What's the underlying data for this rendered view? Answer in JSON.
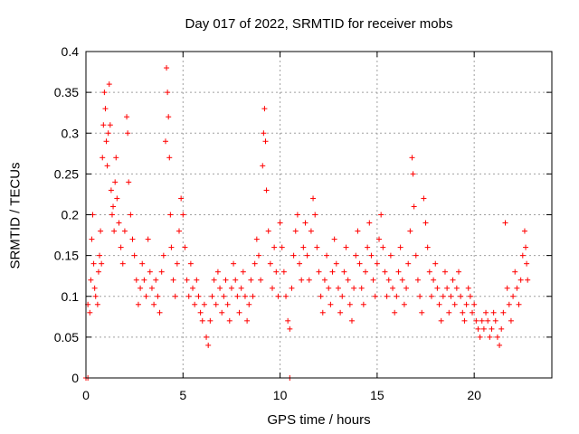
{
  "chart_data": {
    "type": "scatter",
    "title": "Day 017 of 2022, SRMTID for receiver mobs",
    "xlabel": "GPS time / hours",
    "ylabel": "SRMTID / TECUs",
    "xlim": [
      0,
      24
    ],
    "ylim": [
      0,
      0.4
    ],
    "xticks": [
      0,
      5,
      10,
      15,
      20
    ],
    "yticks": [
      0,
      0.05,
      0.1,
      0.15,
      0.2,
      0.25,
      0.3,
      0.35,
      0.4
    ],
    "grid": true,
    "marker": "+",
    "color": "#ff0000",
    "series": [
      {
        "name": "SRMTID",
        "points": [
          [
            0.0,
            0.0
          ],
          [
            0.1,
            0.0
          ],
          [
            10.5,
            0.0
          ],
          [
            0.1,
            0.09
          ],
          [
            0.2,
            0.08
          ],
          [
            0.25,
            0.12
          ],
          [
            0.3,
            0.17
          ],
          [
            0.35,
            0.2
          ],
          [
            0.4,
            0.14
          ],
          [
            0.45,
            0.11
          ],
          [
            0.5,
            0.1
          ],
          [
            0.6,
            0.09
          ],
          [
            0.65,
            0.13
          ],
          [
            0.7,
            0.15
          ],
          [
            0.75,
            0.18
          ],
          [
            0.8,
            0.14
          ],
          [
            0.85,
            0.27
          ],
          [
            0.9,
            0.31
          ],
          [
            0.95,
            0.35
          ],
          [
            1.0,
            0.33
          ],
          [
            1.05,
            0.29
          ],
          [
            1.1,
            0.26
          ],
          [
            1.15,
            0.3
          ],
          [
            1.2,
            0.36
          ],
          [
            1.25,
            0.31
          ],
          [
            1.3,
            0.23
          ],
          [
            1.35,
            0.2
          ],
          [
            1.4,
            0.21
          ],
          [
            1.45,
            0.18
          ],
          [
            1.5,
            0.24
          ],
          [
            1.55,
            0.27
          ],
          [
            1.6,
            0.22
          ],
          [
            1.7,
            0.19
          ],
          [
            1.8,
            0.16
          ],
          [
            1.9,
            0.14
          ],
          [
            2.0,
            0.18
          ],
          [
            2.1,
            0.32
          ],
          [
            2.15,
            0.3
          ],
          [
            2.2,
            0.24
          ],
          [
            2.3,
            0.2
          ],
          [
            2.4,
            0.17
          ],
          [
            2.5,
            0.15
          ],
          [
            2.6,
            0.12
          ],
          [
            2.7,
            0.09
          ],
          [
            2.8,
            0.11
          ],
          [
            2.9,
            0.14
          ],
          [
            3.0,
            0.12
          ],
          [
            3.1,
            0.1
          ],
          [
            3.2,
            0.17
          ],
          [
            3.3,
            0.13
          ],
          [
            3.4,
            0.11
          ],
          [
            3.5,
            0.09
          ],
          [
            3.6,
            0.12
          ],
          [
            3.7,
            0.1
          ],
          [
            3.8,
            0.08
          ],
          [
            3.9,
            0.13
          ],
          [
            4.0,
            0.15
          ],
          [
            4.1,
            0.29
          ],
          [
            4.15,
            0.38
          ],
          [
            4.2,
            0.35
          ],
          [
            4.25,
            0.32
          ],
          [
            4.3,
            0.27
          ],
          [
            4.35,
            0.2
          ],
          [
            4.4,
            0.16
          ],
          [
            4.5,
            0.12
          ],
          [
            4.6,
            0.1
          ],
          [
            4.7,
            0.14
          ],
          [
            4.8,
            0.18
          ],
          [
            4.9,
            0.22
          ],
          [
            5.0,
            0.2
          ],
          [
            5.1,
            0.16
          ],
          [
            5.2,
            0.12
          ],
          [
            5.3,
            0.1
          ],
          [
            5.4,
            0.14
          ],
          [
            5.5,
            0.11
          ],
          [
            5.6,
            0.09
          ],
          [
            5.7,
            0.12
          ],
          [
            5.8,
            0.1
          ],
          [
            5.9,
            0.08
          ],
          [
            6.0,
            0.07
          ],
          [
            6.1,
            0.09
          ],
          [
            6.2,
            0.05
          ],
          [
            6.3,
            0.04
          ],
          [
            6.4,
            0.07
          ],
          [
            6.5,
            0.1
          ],
          [
            6.6,
            0.12
          ],
          [
            6.7,
            0.09
          ],
          [
            6.8,
            0.13
          ],
          [
            6.9,
            0.11
          ],
          [
            7.0,
            0.08
          ],
          [
            7.1,
            0.1
          ],
          [
            7.2,
            0.12
          ],
          [
            7.3,
            0.09
          ],
          [
            7.4,
            0.07
          ],
          [
            7.5,
            0.11
          ],
          [
            7.6,
            0.14
          ],
          [
            7.7,
            0.12
          ],
          [
            7.8,
            0.1
          ],
          [
            7.9,
            0.08
          ],
          [
            8.0,
            0.11
          ],
          [
            8.1,
            0.13
          ],
          [
            8.2,
            0.1
          ],
          [
            8.3,
            0.07
          ],
          [
            8.4,
            0.09
          ],
          [
            8.5,
            0.12
          ],
          [
            8.6,
            0.1
          ],
          [
            8.7,
            0.14
          ],
          [
            8.8,
            0.17
          ],
          [
            8.9,
            0.15
          ],
          [
            9.0,
            0.12
          ],
          [
            9.1,
            0.26
          ],
          [
            9.15,
            0.3
          ],
          [
            9.2,
            0.33
          ],
          [
            9.25,
            0.29
          ],
          [
            9.3,
            0.23
          ],
          [
            9.4,
            0.18
          ],
          [
            9.5,
            0.14
          ],
          [
            9.6,
            0.11
          ],
          [
            9.7,
            0.16
          ],
          [
            9.8,
            0.13
          ],
          [
            9.9,
            0.1
          ],
          [
            10.0,
            0.19
          ],
          [
            10.1,
            0.16
          ],
          [
            10.2,
            0.13
          ],
          [
            10.3,
            0.1
          ],
          [
            10.4,
            0.07
          ],
          [
            10.5,
            0.06
          ],
          [
            10.6,
            0.11
          ],
          [
            10.7,
            0.15
          ],
          [
            10.8,
            0.18
          ],
          [
            10.9,
            0.2
          ],
          [
            11.0,
            0.14
          ],
          [
            11.1,
            0.12
          ],
          [
            11.2,
            0.16
          ],
          [
            11.3,
            0.19
          ],
          [
            11.4,
            0.15
          ],
          [
            11.5,
            0.12
          ],
          [
            11.6,
            0.18
          ],
          [
            11.7,
            0.22
          ],
          [
            11.8,
            0.2
          ],
          [
            11.9,
            0.16
          ],
          [
            12.0,
            0.13
          ],
          [
            12.1,
            0.1
          ],
          [
            12.2,
            0.08
          ],
          [
            12.3,
            0.12
          ],
          [
            12.4,
            0.15
          ],
          [
            12.5,
            0.11
          ],
          [
            12.6,
            0.09
          ],
          [
            12.7,
            0.13
          ],
          [
            12.8,
            0.17
          ],
          [
            12.9,
            0.14
          ],
          [
            13.0,
            0.11
          ],
          [
            13.1,
            0.08
          ],
          [
            13.2,
            0.1
          ],
          [
            13.3,
            0.13
          ],
          [
            13.4,
            0.16
          ],
          [
            13.5,
            0.12
          ],
          [
            13.6,
            0.09
          ],
          [
            13.7,
            0.07
          ],
          [
            13.8,
            0.11
          ],
          [
            13.9,
            0.15
          ],
          [
            14.0,
            0.18
          ],
          [
            14.1,
            0.14
          ],
          [
            14.2,
            0.11
          ],
          [
            14.3,
            0.09
          ],
          [
            14.4,
            0.13
          ],
          [
            14.5,
            0.16
          ],
          [
            14.6,
            0.19
          ],
          [
            14.7,
            0.15
          ],
          [
            14.8,
            0.12
          ],
          [
            14.9,
            0.1
          ],
          [
            15.0,
            0.14
          ],
          [
            15.1,
            0.17
          ],
          [
            15.2,
            0.2
          ],
          [
            15.3,
            0.16
          ],
          [
            15.4,
            0.13
          ],
          [
            15.5,
            0.1
          ],
          [
            15.6,
            0.12
          ],
          [
            15.7,
            0.15
          ],
          [
            15.8,
            0.11
          ],
          [
            15.9,
            0.08
          ],
          [
            16.0,
            0.1
          ],
          [
            16.1,
            0.13
          ],
          [
            16.2,
            0.16
          ],
          [
            16.3,
            0.12
          ],
          [
            16.4,
            0.09
          ],
          [
            16.5,
            0.11
          ],
          [
            16.6,
            0.14
          ],
          [
            16.7,
            0.18
          ],
          [
            16.8,
            0.27
          ],
          [
            16.85,
            0.25
          ],
          [
            16.9,
            0.21
          ],
          [
            17.0,
            0.15
          ],
          [
            17.1,
            0.12
          ],
          [
            17.2,
            0.1
          ],
          [
            17.3,
            0.08
          ],
          [
            17.4,
            0.22
          ],
          [
            17.5,
            0.19
          ],
          [
            17.6,
            0.16
          ],
          [
            17.7,
            0.13
          ],
          [
            17.8,
            0.1
          ],
          [
            17.9,
            0.12
          ],
          [
            18.0,
            0.14
          ],
          [
            18.1,
            0.11
          ],
          [
            18.2,
            0.09
          ],
          [
            18.3,
            0.07
          ],
          [
            18.4,
            0.1
          ],
          [
            18.5,
            0.13
          ],
          [
            18.6,
            0.11
          ],
          [
            18.7,
            0.08
          ],
          [
            18.8,
            0.1
          ],
          [
            18.9,
            0.12
          ],
          [
            19.0,
            0.09
          ],
          [
            19.1,
            0.11
          ],
          [
            19.2,
            0.13
          ],
          [
            19.3,
            0.1
          ],
          [
            19.4,
            0.08
          ],
          [
            19.5,
            0.07
          ],
          [
            19.6,
            0.09
          ],
          [
            19.7,
            0.11
          ],
          [
            19.8,
            0.1
          ],
          [
            19.9,
            0.08
          ],
          [
            20.0,
            0.09
          ],
          [
            20.1,
            0.07
          ],
          [
            20.2,
            0.06
          ],
          [
            20.3,
            0.05
          ],
          [
            20.4,
            0.07
          ],
          [
            20.5,
            0.06
          ],
          [
            20.6,
            0.08
          ],
          [
            20.7,
            0.07
          ],
          [
            20.8,
            0.05
          ],
          [
            20.9,
            0.06
          ],
          [
            21.0,
            0.08
          ],
          [
            21.1,
            0.07
          ],
          [
            21.2,
            0.05
          ],
          [
            21.3,
            0.04
          ],
          [
            21.4,
            0.06
          ],
          [
            21.5,
            0.08
          ],
          [
            21.6,
            0.19
          ],
          [
            21.7,
            0.11
          ],
          [
            21.8,
            0.09
          ],
          [
            21.9,
            0.07
          ],
          [
            22.0,
            0.1
          ],
          [
            22.1,
            0.13
          ],
          [
            22.2,
            0.11
          ],
          [
            22.3,
            0.09
          ],
          [
            22.4,
            0.12
          ],
          [
            22.5,
            0.15
          ],
          [
            22.6,
            0.18
          ],
          [
            22.65,
            0.16
          ],
          [
            22.7,
            0.14
          ],
          [
            22.75,
            0.12
          ]
        ]
      }
    ]
  }
}
